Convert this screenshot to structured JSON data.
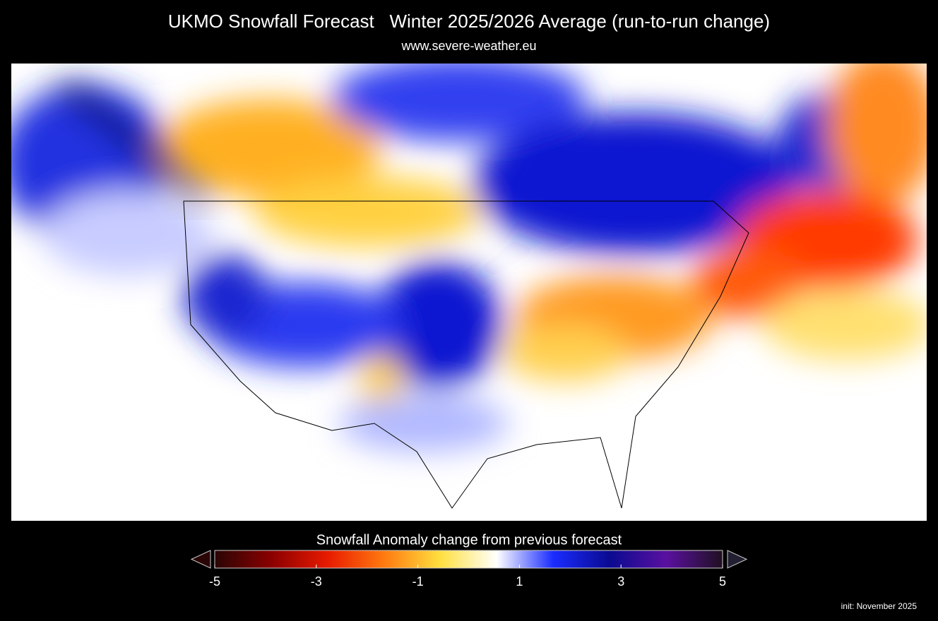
{
  "header": {
    "title": "UKMO Snowfall Forecast   Winter 2025/2026 Average (run-to-run change)",
    "subtitle": "www.severe-weather.eu"
  },
  "colorbar": {
    "label": "Snowfall Anomaly change from previous forecast",
    "range": [
      -5,
      5
    ],
    "ticks": [
      -5,
      -3,
      -1,
      1,
      3,
      5
    ],
    "colors": [
      "#2a0505",
      "#8a0000",
      "#e81a00",
      "#ff7a10",
      "#ffe040",
      "#ffffff",
      "#1a2cff",
      "#0a0a90",
      "#5a10a0",
      "#201020"
    ]
  },
  "footer": {
    "init": "init: November 2025"
  }
}
